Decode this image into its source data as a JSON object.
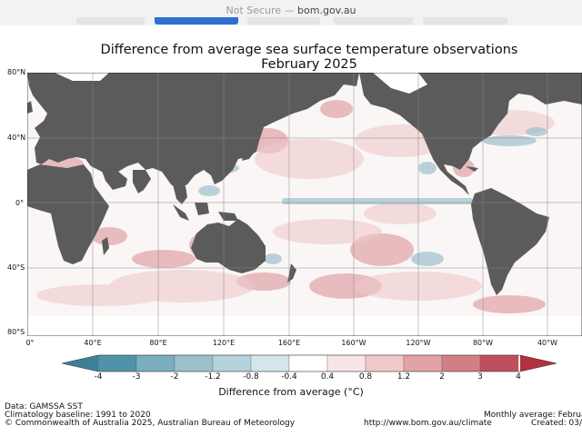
{
  "browser": {
    "not_secure": "Not Secure",
    "separator": "—",
    "domain": "bom.gov.au"
  },
  "map": {
    "title_line1": "Difference from average sea surface temperature observations",
    "title_line2": "February 2025",
    "lat_labels": [
      "80°N",
      "40°N",
      "0°",
      "40°S",
      "80°S"
    ],
    "lon_labels": [
      "0°",
      "40°E",
      "80°E",
      "120°E",
      "160°E",
      "160°W",
      "120°W",
      "80°W",
      "40°W"
    ],
    "colorbar": {
      "title": "Difference from average (°C)",
      "ticks": [
        "-4",
        "-3",
        "-2",
        "-1.2",
        "-0.8",
        "-0.4",
        "0.4",
        "0.8",
        "1.2",
        "2",
        "3",
        "4"
      ],
      "colors": [
        "#4f93a8",
        "#7aaebe",
        "#9bc1cd",
        "#b6d3db",
        "#d4e6ea",
        "#ffffff",
        "#f8e5e6",
        "#efc9ca",
        "#e2a3a6",
        "#d27f84",
        "#bf4f5c"
      ],
      "low_color": "#3d7f95",
      "high_color": "#b3303f"
    },
    "colors": {
      "land": "#5b5b5b",
      "ice": "#ffffff",
      "warm": "#d98c92",
      "cool": "#8fb8c6"
    }
  },
  "footer": {
    "data": "Data: GAMSSA SST",
    "baseline": "Climatology baseline: 1991 to 2020",
    "copyright": "© Commonwealth of Australia 2025, Australian Bureau of Meteorology",
    "url": "http://www.bom.gov.au/climate",
    "average": "Monthly average: Februa",
    "created": "Created: 03/("
  }
}
